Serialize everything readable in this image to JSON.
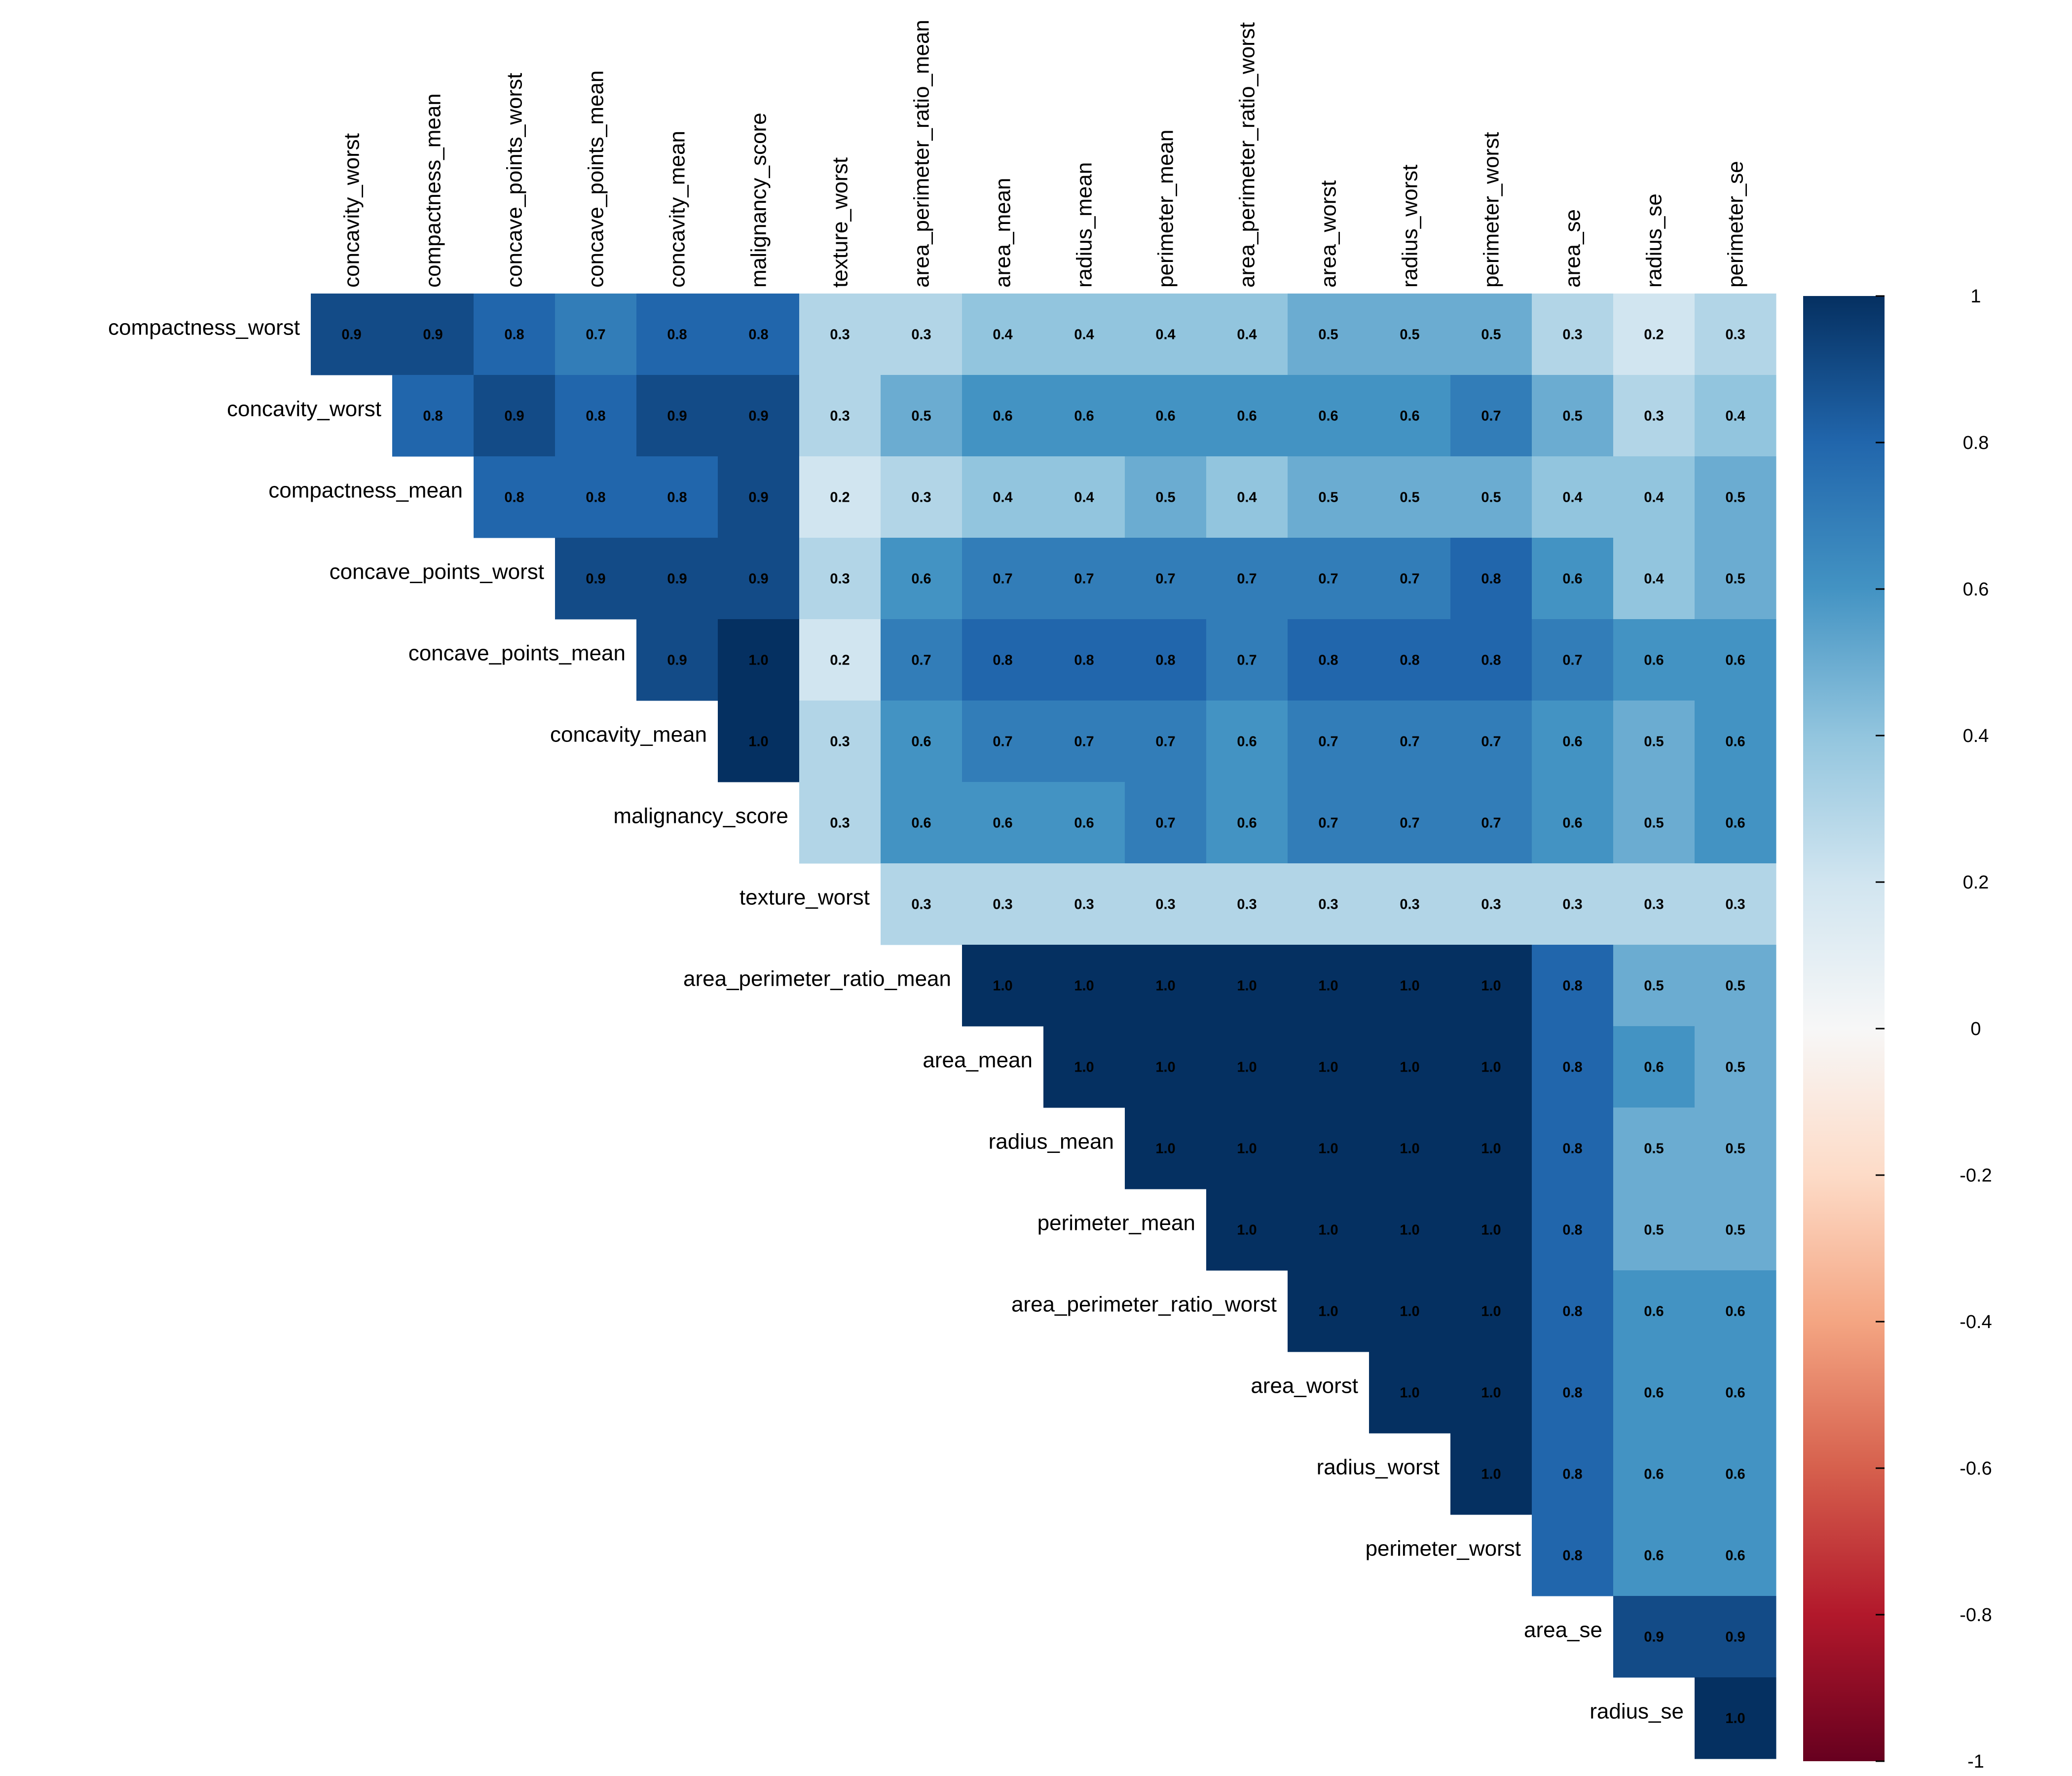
{
  "chart_data": {
    "type": "heatmap",
    "layout": "upper-triangle",
    "column_labels": [
      "concavity_worst",
      "compactness_mean",
      "concave_points_worst",
      "concave_points_mean",
      "concavity_mean",
      "malignancy_score",
      "texture_worst",
      "area_perimeter_ratio_mean",
      "area_mean",
      "radius_mean",
      "perimeter_mean",
      "area_perimeter_ratio_worst",
      "area_worst",
      "radius_worst",
      "perimeter_worst",
      "area_se",
      "radius_se",
      "perimeter_se"
    ],
    "row_labels": [
      "compactness_worst",
      "concavity_worst",
      "compactness_mean",
      "concave_points_worst",
      "concave_points_mean",
      "concavity_mean",
      "malignancy_score",
      "texture_worst",
      "area_perimeter_ratio_mean",
      "area_mean",
      "radius_mean",
      "perimeter_mean",
      "area_perimeter_ratio_worst",
      "area_worst",
      "radius_worst",
      "perimeter_worst",
      "area_se",
      "radius_se"
    ],
    "values": [
      [
        0.9,
        0.9,
        0.8,
        0.7,
        0.8,
        0.8,
        0.3,
        0.3,
        0.4,
        0.4,
        0.4,
        0.4,
        0.5,
        0.5,
        0.5,
        0.3,
        0.2,
        0.3
      ],
      [
        null,
        0.8,
        0.9,
        0.8,
        0.9,
        0.9,
        0.3,
        0.5,
        0.6,
        0.6,
        0.6,
        0.6,
        0.6,
        0.6,
        0.7,
        0.5,
        0.3,
        0.4
      ],
      [
        null,
        null,
        0.8,
        0.8,
        0.8,
        0.9,
        0.2,
        0.3,
        0.4,
        0.4,
        0.5,
        0.4,
        0.5,
        0.5,
        0.5,
        0.4,
        0.4,
        0.5
      ],
      [
        null,
        null,
        null,
        0.9,
        0.9,
        0.9,
        0.3,
        0.6,
        0.7,
        0.7,
        0.7,
        0.7,
        0.7,
        0.7,
        0.8,
        0.6,
        0.4,
        0.5
      ],
      [
        null,
        null,
        null,
        null,
        0.9,
        1.0,
        0.2,
        0.7,
        0.8,
        0.8,
        0.8,
        0.7,
        0.8,
        0.8,
        0.8,
        0.7,
        0.6,
        0.6
      ],
      [
        null,
        null,
        null,
        null,
        null,
        1.0,
        0.3,
        0.6,
        0.7,
        0.7,
        0.7,
        0.6,
        0.7,
        0.7,
        0.7,
        0.6,
        0.5,
        0.6
      ],
      [
        null,
        null,
        null,
        null,
        null,
        null,
        0.3,
        0.6,
        0.6,
        0.6,
        0.7,
        0.6,
        0.7,
        0.7,
        0.7,
        0.6,
        0.5,
        0.6
      ],
      [
        null,
        null,
        null,
        null,
        null,
        null,
        null,
        0.3,
        0.3,
        0.3,
        0.3,
        0.3,
        0.3,
        0.3,
        0.3,
        0.3,
        0.3,
        0.3
      ],
      [
        null,
        null,
        null,
        null,
        null,
        null,
        null,
        null,
        1.0,
        1.0,
        1.0,
        1.0,
        1.0,
        1.0,
        1.0,
        0.8,
        0.5,
        0.5
      ],
      [
        null,
        null,
        null,
        null,
        null,
        null,
        null,
        null,
        null,
        1.0,
        1.0,
        1.0,
        1.0,
        1.0,
        1.0,
        0.8,
        0.6,
        0.5
      ],
      [
        null,
        null,
        null,
        null,
        null,
        null,
        null,
        null,
        null,
        null,
        1.0,
        1.0,
        1.0,
        1.0,
        1.0,
        0.8,
        0.5,
        0.5
      ],
      [
        null,
        null,
        null,
        null,
        null,
        null,
        null,
        null,
        null,
        null,
        null,
        1.0,
        1.0,
        1.0,
        1.0,
        0.8,
        0.5,
        0.5
      ],
      [
        null,
        null,
        null,
        null,
        null,
        null,
        null,
        null,
        null,
        null,
        null,
        null,
        1.0,
        1.0,
        1.0,
        0.8,
        0.6,
        0.6
      ],
      [
        null,
        null,
        null,
        null,
        null,
        null,
        null,
        null,
        null,
        null,
        null,
        null,
        null,
        1.0,
        1.0,
        0.8,
        0.6,
        0.6
      ],
      [
        null,
        null,
        null,
        null,
        null,
        null,
        null,
        null,
        null,
        null,
        null,
        null,
        null,
        null,
        1.0,
        0.8,
        0.6,
        0.6
      ],
      [
        null,
        null,
        null,
        null,
        null,
        null,
        null,
        null,
        null,
        null,
        null,
        null,
        null,
        null,
        null,
        0.8,
        0.6,
        0.6
      ],
      [
        null,
        null,
        null,
        null,
        null,
        null,
        null,
        null,
        null,
        null,
        null,
        null,
        null,
        null,
        null,
        null,
        0.9,
        0.9
      ],
      [
        null,
        null,
        null,
        null,
        null,
        null,
        null,
        null,
        null,
        null,
        null,
        null,
        null,
        null,
        null,
        null,
        null,
        1.0
      ]
    ],
    "colorbar": {
      "min": -1,
      "max": 1,
      "ticks": [
        "1",
        "0.8",
        "0.6",
        "0.4",
        "0.2",
        "0",
        "-0.2",
        "-0.4",
        "-0.6",
        "-0.8",
        "-1"
      ],
      "colormap": "RdBu",
      "stops": [
        "#67001f",
        "#b2182b",
        "#d6604d",
        "#f4a582",
        "#fddbc7",
        "#f7f7f7",
        "#d1e5f0",
        "#92c5de",
        "#4393c3",
        "#2166ac",
        "#053061"
      ]
    },
    "legend_position": "right"
  }
}
